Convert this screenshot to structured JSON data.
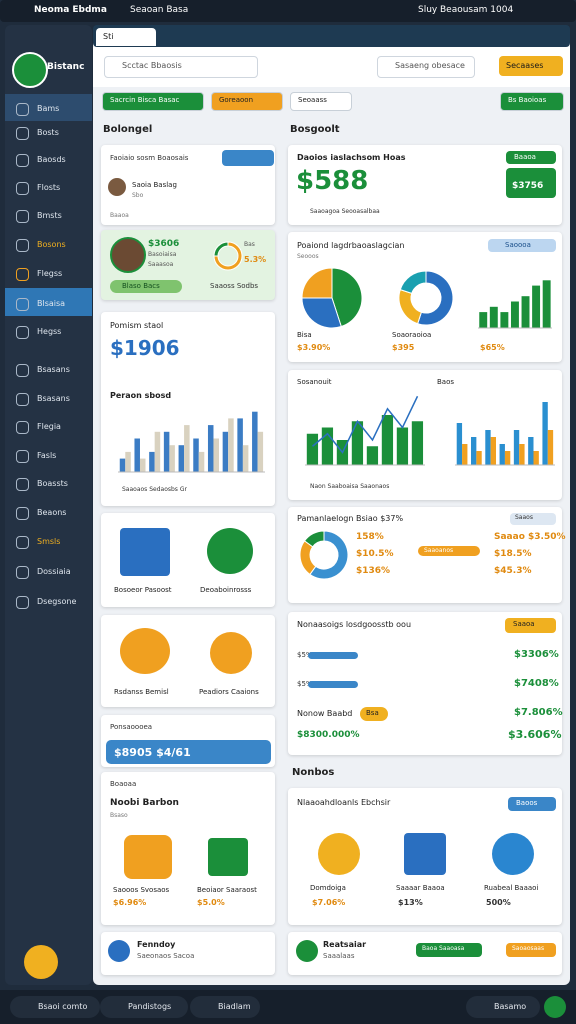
{
  "topbar": {
    "tabs": [
      "Neoma Ebdma",
      "Seaoan Basa"
    ],
    "user": "Sluy",
    "status": "Beaousam 1004"
  },
  "browser": {
    "tab": "Sti"
  },
  "sidebar": {
    "brand": "Bistanc",
    "items": [
      "Bams",
      "Bosts",
      "Baosds",
      "Flosts",
      "Bmsts",
      "Bosons",
      "Flegss",
      "Blsaisa",
      "Hegss",
      "Bsasans",
      "Bsasans",
      "Flegia",
      "Fasls",
      "Boassts",
      "Beaons",
      "Smsls",
      "Dossiaia",
      "Dsegsone"
    ]
  },
  "toolbar": {
    "search": "Scctac Bbaosis",
    "search2": "Sasaeng obesace",
    "button": "Secaases"
  },
  "filters": [
    "Sacrcin Bisca Basac",
    "Goreaoon",
    "Seoaass",
    "Bs Baoioas"
  ],
  "left": {
    "header": "Bolongel",
    "profile": {
      "title": "Faoiaio sosm Boaosais",
      "name": "Saoia Baslag",
      "role": "Sbo",
      "note": "Baaoa"
    },
    "balance": {
      "value": "$3606",
      "line1": "Basoiaisa",
      "line2": "Saaasoa",
      "donut_label": "Bas",
      "donut_value": "5.3%",
      "pill": "Blaso Bacs",
      "link": "Saaoss Sodbs"
    },
    "stats": {
      "title": "Pomism staol",
      "value": "$1906",
      "subtitle": "Peraon sbosd",
      "footer": "Saaoaos Sedaosbs Gr"
    },
    "tiles1": [
      "Bosoeor Pasoost",
      "Deoaboinrosss"
    ],
    "tiles2": [
      "Rsdanss Bemisl",
      "Peadiors Caaions"
    ],
    "payment": {
      "title": "Ponsaoooea",
      "value": "$8905 $4/61"
    },
    "products": {
      "header": "Boaoaa",
      "title": "Noobi Barbon",
      "sub": "Bsaso",
      "items": [
        {
          "name": "Saooos Svosaos",
          "value": "$6.96%"
        },
        {
          "name": "Beoiaor Saaraost",
          "value": "$5.0%"
        }
      ]
    },
    "footer": {
      "title": "Fenndoy",
      "sub": "Saeonaos Sacoa"
    }
  },
  "right": {
    "header": "Bosgoolt",
    "summary": {
      "title": "Daoios iaslachsom Hoas",
      "value": "$588",
      "badge": "Baaoa",
      "badge2": "$3756",
      "footer": "Saaoagoa Seooasalbaa"
    },
    "overview": {
      "title": "Poaiond lagdrbaoaslagcian",
      "tag": "Saoooa",
      "sub": "Seooos",
      "captions": [
        {
          "name": "Bisa",
          "value": "$3.90%"
        },
        {
          "name": "Soaoraoioa",
          "value": "$395"
        },
        {
          "name": "",
          "value": "$65%"
        }
      ]
    },
    "trend": {
      "title": "Sosanouit",
      "title2": "Baos",
      "footer": "Naon Saaboaisa Saaonaos"
    },
    "mix": {
      "title": "Pamanlaelogn Bsiao $37%",
      "tag": "Saaos",
      "left": [
        "158%",
        "$10.5%",
        "$136%"
      ],
      "bar_label": "Saaoanos",
      "right": [
        "Saaao $3.50%",
        "$18.5%",
        "$45.3%"
      ]
    },
    "progress": {
      "title": "Nonaasoigs losdgoosstb oou",
      "tag": "Saaoa",
      "rows": [
        {
          "label": "$5%",
          "value": "$3306%"
        },
        {
          "label": "$5%",
          "value": "$7408%"
        }
      ],
      "name": "Nonow Baabd",
      "name_tag": "Bsa",
      "name_value": "$7.806%",
      "foot_left": "$8300.000%",
      "foot_value": "$3.606%"
    },
    "section": "Nonbos",
    "team": {
      "title": "Nlaaoahdloanls Ebchsir",
      "tag": "Baoos",
      "items": [
        {
          "name": "Domdoiga",
          "value": "$7.06%"
        },
        {
          "name": "Saaaar Baaoa",
          "value": "$13%"
        },
        {
          "name": "Ruabeal Baaaoi",
          "value": "500%"
        }
      ]
    },
    "footer": {
      "title": "Reatsaiar",
      "sub": "Saaalaas",
      "button1": "Baoa Saaoasa",
      "button2": "Saoaosaas"
    }
  },
  "bottom": [
    "Bsaoi comto",
    "Pandistogs",
    "Biadlam",
    "Basamo"
  ],
  "charts": {
    "stats_bars": {
      "ylim": [
        0,
        10
      ],
      "series": [
        {
          "color": "#3b7cc4",
          "values": [
            2,
            5,
            3,
            6,
            4,
            5,
            7,
            6,
            8,
            9
          ]
        },
        {
          "color": "#d9d2c0",
          "values": [
            3,
            2,
            6,
            4,
            7,
            3,
            5,
            8,
            4,
            6
          ]
        }
      ]
    },
    "overview_pie": {
      "colors": [
        "#1b8f3a",
        "#2a6fc0",
        "#f0a020"
      ],
      "values": [
        45,
        30,
        25
      ]
    },
    "overview_donut": {
      "colors": [
        "#2a6fc0",
        "#f0b020",
        "#1aa0b0"
      ],
      "values": [
        55,
        25,
        20
      ]
    },
    "overview_bars": {
      "ylim": [
        0,
        10
      ],
      "color": "#1b8f3a",
      "values": [
        3,
        4,
        3,
        5,
        6,
        8,
        9
      ]
    },
    "trend_bars": {
      "ylim": [
        0,
        12
      ],
      "color": "#1b8f3a",
      "values": [
        5,
        6,
        4,
        7,
        3,
        8,
        6,
        7
      ]
    },
    "trend_line": {
      "ylim": [
        0,
        12
      ],
      "color": "#2a6fc0",
      "values": [
        3,
        5,
        2,
        7,
        4,
        9,
        6,
        11
      ]
    },
    "trend_bars2": {
      "ylim": [
        0,
        10
      ],
      "series": [
        {
          "color": "#2a8fd0",
          "values": [
            6,
            4,
            5,
            3,
            5,
            4,
            9
          ]
        },
        {
          "color": "#f0a020",
          "values": [
            3,
            2,
            4,
            2,
            3,
            2,
            5
          ]
        }
      ]
    },
    "mix_donut": {
      "colors": [
        "#3a90d0",
        "#f0a020",
        "#1b8f3a"
      ],
      "values": [
        60,
        25,
        15
      ]
    },
    "balance_donut": {
      "colors": [
        "#f0a020",
        "#1b8f3a"
      ],
      "values": [
        75,
        25
      ]
    }
  }
}
